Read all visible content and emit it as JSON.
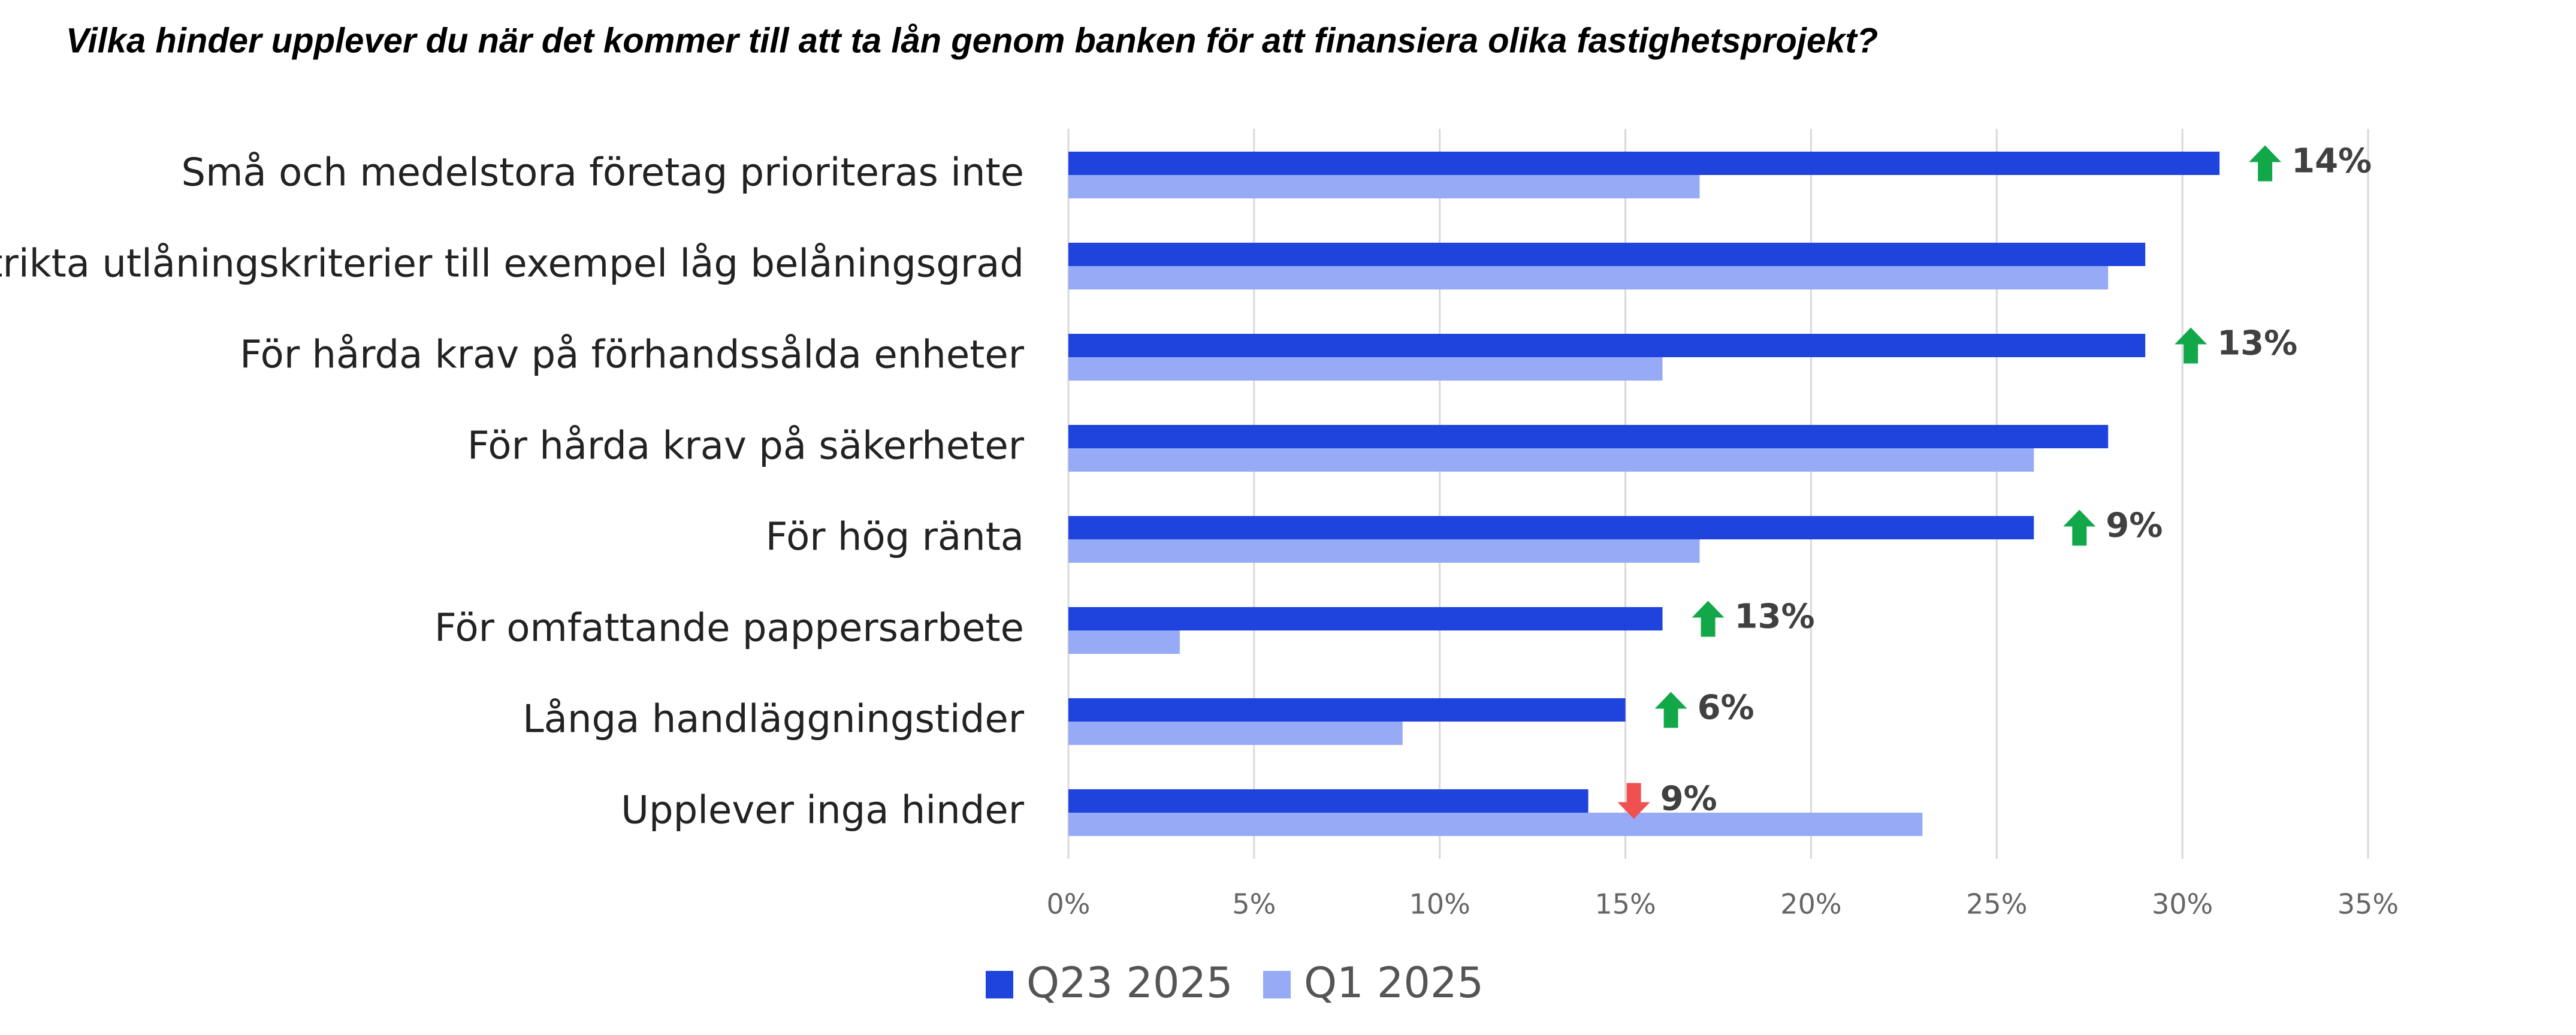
{
  "chart_data": {
    "type": "hbar",
    "title": "Vilka hinder upplever du när det kommer till att ta lån genom banken för att finansiera olika fastighetsprojekt?",
    "categories": [
      "Små och medelstora företag prioriteras inte",
      "Strikta utlåningskriterier till exempel låg belåningsgrad",
      "För hårda krav på förhandssålda enheter",
      "För hårda krav på säkerheter",
      "För hög ränta",
      "För omfattande pappersarbete",
      "Långa handläggningstider",
      "Upplever inga hinder"
    ],
    "series": [
      {
        "name": "Q23 2025",
        "color": "#1f44dd",
        "values": [
          31,
          29,
          29,
          28,
          26,
          16,
          15,
          14
        ]
      },
      {
        "name": "Q1 2025",
        "color": "#97aaf5",
        "values": [
          17,
          28,
          16,
          26,
          17,
          3,
          9,
          23
        ]
      }
    ],
    "xlim": [
      0,
      35
    ],
    "xticks": [
      {
        "value": 0,
        "label": "0%"
      },
      {
        "value": 5,
        "label": "5%"
      },
      {
        "value": 10,
        "label": "10%"
      },
      {
        "value": 15,
        "label": "15%"
      },
      {
        "value": 20,
        "label": "20%"
      },
      {
        "value": 25,
        "label": "25%"
      },
      {
        "value": 30,
        "label": "30%"
      },
      {
        "value": 35,
        "label": "35%"
      }
    ],
    "grid": true,
    "legend": "bottom",
    "annotations": [
      {
        "category": 0,
        "direction": "up",
        "color": "#12a84a",
        "label": "14%"
      },
      {
        "category": 2,
        "direction": "up",
        "color": "#12a84a",
        "label": "13%"
      },
      {
        "category": 4,
        "direction": "up",
        "color": "#12a84a",
        "label": "9%"
      },
      {
        "category": 5,
        "direction": "up",
        "color": "#12a84a",
        "label": "13%"
      },
      {
        "category": 6,
        "direction": "up",
        "color": "#12a84a",
        "label": "6%"
      },
      {
        "category": 7,
        "direction": "down",
        "color": "#f05050",
        "label": "9%"
      }
    ]
  }
}
